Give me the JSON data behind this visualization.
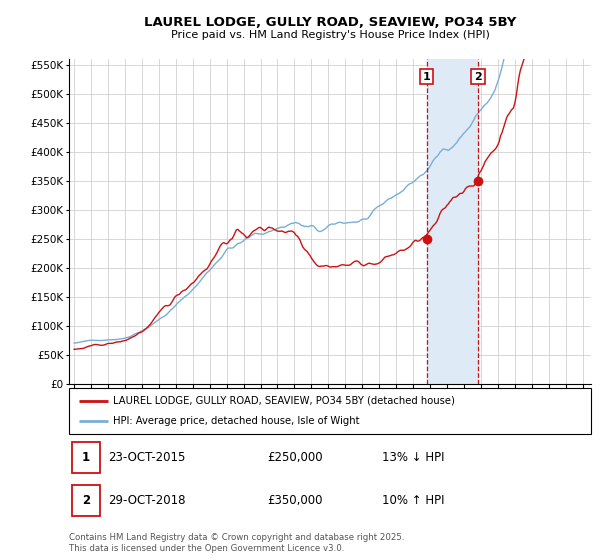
{
  "title": "LAUREL LODGE, GULLY ROAD, SEAVIEW, PO34 5BY",
  "subtitle": "Price paid vs. HM Land Registry's House Price Index (HPI)",
  "ylim": [
    0,
    560000
  ],
  "ytick_step": 50000,
  "background_color": "#ffffff",
  "plot_bg_color": "#ffffff",
  "grid_color": "#c8c8c8",
  "hpi_line_color": "#7aaed6",
  "property_line_color": "#cc1111",
  "sale1_idx": 246,
  "sale1_price": 250000,
  "sale1_yr": 2015.8,
  "sale2_idx": 282,
  "sale2_price": 350000,
  "sale2_yr": 2018.83,
  "shade_color": "#deeaf5",
  "dashed_color": "#cc1111",
  "legend_property": "LAUREL LODGE, GULLY ROAD, SEAVIEW, PO34 5BY (detached house)",
  "legend_hpi": "HPI: Average price, detached house, Isle of Wight",
  "row1_label": "1",
  "row1_date": "23-OCT-2015",
  "row1_price": "£250,000",
  "row1_pct": "13% ↓ HPI",
  "row2_label": "2",
  "row2_date": "29-OCT-2018",
  "row2_price": "£350,000",
  "row2_pct": "10% ↑ HPI",
  "footnote": "Contains HM Land Registry data © Crown copyright and database right 2025.\nThis data is licensed under the Open Government Licence v3.0.",
  "start_year": 1995,
  "n_months": 366
}
